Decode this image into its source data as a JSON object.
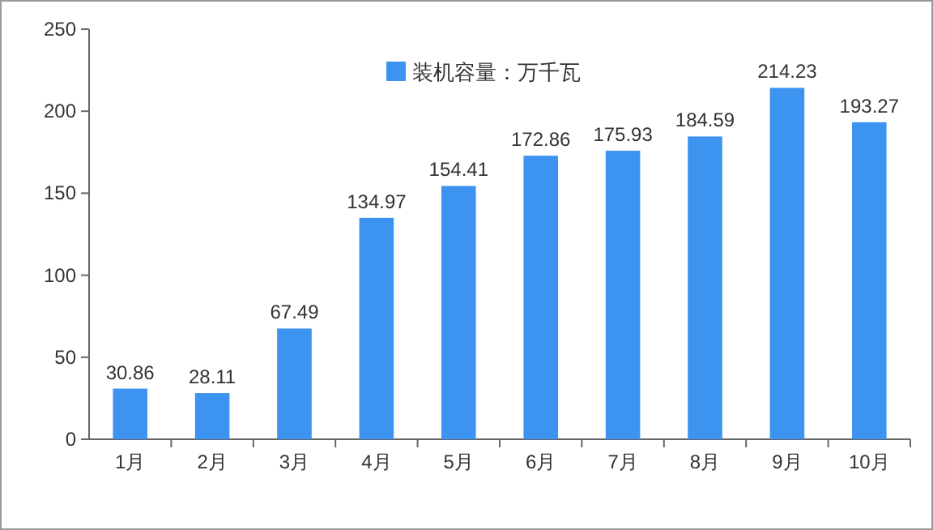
{
  "chart_data": {
    "type": "bar",
    "categories": [
      "1月",
      "2月",
      "3月",
      "4月",
      "5月",
      "6月",
      "7月",
      "8月",
      "9月",
      "10月"
    ],
    "series": [
      {
        "name": "装机容量：万千瓦",
        "color": "#3d94f0",
        "values": [
          30.86,
          28.11,
          67.49,
          134.97,
          154.41,
          172.86,
          175.93,
          184.59,
          214.23,
          193.27
        ]
      }
    ],
    "ylim": [
      0,
      250
    ],
    "yticks": [
      0,
      50,
      100,
      150,
      200,
      250
    ],
    "data_labels": true,
    "legend": "top",
    "grid": false
  }
}
